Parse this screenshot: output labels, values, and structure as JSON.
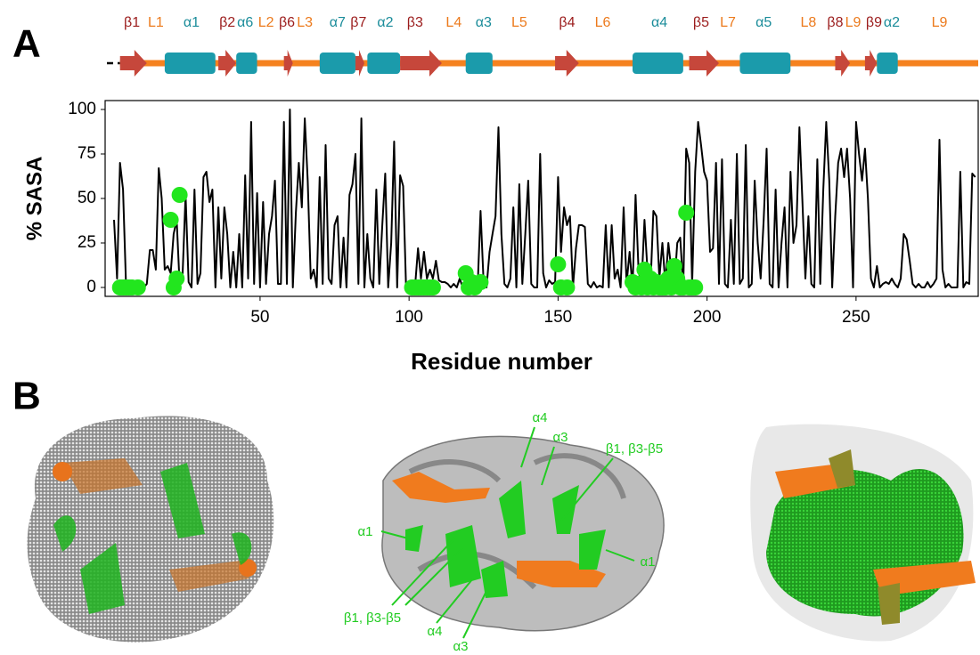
{
  "panel_labels": [
    "A",
    "B"
  ],
  "secondary_structure": {
    "labels": [
      {
        "text": "β1",
        "at": 7,
        "color": "#9b1c1c"
      },
      {
        "text": "L1",
        "at": 15,
        "color": "#ec7a1c"
      },
      {
        "text": "α1",
        "at": 27,
        "color": "#1a8c9a"
      },
      {
        "text": "β2",
        "at": 39,
        "color": "#9b1c1c"
      },
      {
        "text": "α6",
        "at": 45,
        "color": "#1a8c9a"
      },
      {
        "text": "L2",
        "at": 52,
        "color": "#ec7a1c"
      },
      {
        "text": "β6",
        "at": 59,
        "color": "#9b1c1c"
      },
      {
        "text": "L3",
        "at": 65,
        "color": "#ec7a1c"
      },
      {
        "text": "α7",
        "at": 76,
        "color": "#1a8c9a"
      },
      {
        "text": "β7",
        "at": 83,
        "color": "#9b1c1c"
      },
      {
        "text": "α2",
        "at": 92,
        "color": "#1a8c9a"
      },
      {
        "text": "β3",
        "at": 102,
        "color": "#9b1c1c"
      },
      {
        "text": "L4",
        "at": 115,
        "color": "#ec7a1c"
      },
      {
        "text": "α3",
        "at": 125,
        "color": "#1a8c9a"
      },
      {
        "text": "L5",
        "at": 137,
        "color": "#ec7a1c"
      },
      {
        "text": "β4",
        "at": 153,
        "color": "#9b1c1c"
      },
      {
        "text": "L6",
        "at": 165,
        "color": "#ec7a1c"
      },
      {
        "text": "α4",
        "at": 184,
        "color": "#1a8c9a"
      },
      {
        "text": "β5",
        "at": 198,
        "color": "#9b1c1c"
      },
      {
        "text": "L7",
        "at": 207,
        "color": "#ec7a1c"
      },
      {
        "text": "α5",
        "at": 219,
        "color": "#1a8c9a"
      },
      {
        "text": "L8",
        "at": 234,
        "color": "#ec7a1c"
      },
      {
        "text": "β8",
        "at": 243,
        "color": "#9b1c1c"
      },
      {
        "text": "L9",
        "at": 249,
        "color": "#ec7a1c"
      },
      {
        "text": "β9",
        "at": 256,
        "color": "#9b1c1c"
      },
      {
        "text": "α2",
        "at": 262,
        "color": "#1a8c9a"
      },
      {
        "text": "L9",
        "at": 278,
        "color": "#ec7a1c"
      }
    ],
    "elements": [
      {
        "shape": "arrow",
        "color": "#c6473b",
        "start": 3,
        "end": 12
      },
      {
        "shape": "rect",
        "color": "#1b9bab",
        "start": 18,
        "end": 35
      },
      {
        "shape": "arrow",
        "color": "#c6473b",
        "start": 36,
        "end": 42
      },
      {
        "shape": "rect",
        "color": "#1b9bab",
        "start": 42,
        "end": 49
      },
      {
        "shape": "arrow",
        "color": "#c6473b",
        "start": 58,
        "end": 61
      },
      {
        "shape": "rect",
        "color": "#1b9bab",
        "start": 70,
        "end": 82
      },
      {
        "shape": "arrow",
        "color": "#c6473b",
        "start": 82,
        "end": 85
      },
      {
        "shape": "rect",
        "color": "#1b9bab",
        "start": 86,
        "end": 97
      },
      {
        "shape": "arrow",
        "color": "#c6473b",
        "start": 97,
        "end": 111
      },
      {
        "shape": "rect",
        "color": "#1b9bab",
        "start": 119,
        "end": 128
      },
      {
        "shape": "arrow",
        "color": "#c6473b",
        "start": 149,
        "end": 157
      },
      {
        "shape": "rect",
        "color": "#1b9bab",
        "start": 175,
        "end": 192
      },
      {
        "shape": "arrow",
        "color": "#c6473b",
        "start": 194,
        "end": 204
      },
      {
        "shape": "rect",
        "color": "#1b9bab",
        "start": 211,
        "end": 228
      },
      {
        "shape": "arrow",
        "color": "#c6473b",
        "start": 243,
        "end": 248
      },
      {
        "shape": "arrow",
        "color": "#c6473b",
        "start": 253,
        "end": 257
      },
      {
        "shape": "rect",
        "color": "#1b9bab",
        "start": 257,
        "end": 264
      }
    ],
    "loop_color": "#f5821f"
  },
  "chart_data": {
    "type": "line",
    "ylabel": "% SASA",
    "xlabel": "Residue number",
    "xlim": [
      -2,
      291
    ],
    "ylim": [
      -5,
      105
    ],
    "xticks": [
      50,
      100,
      150,
      200,
      250
    ],
    "yticks": [
      0,
      25,
      50,
      75,
      100
    ],
    "x": [
      1,
      2,
      3,
      4,
      5,
      6,
      7,
      8,
      9,
      10,
      11,
      12,
      13,
      14,
      15,
      16,
      17,
      18,
      19,
      20,
      21,
      22,
      23,
      24,
      25,
      26,
      27,
      28,
      29,
      30,
      31,
      32,
      33,
      34,
      35,
      36,
      37,
      38,
      39,
      40,
      41,
      42,
      43,
      44,
      45,
      46,
      47,
      48,
      49,
      50,
      51,
      52,
      53,
      54,
      55,
      56,
      57,
      58,
      59,
      60,
      61,
      62,
      63,
      64,
      65,
      66,
      67,
      68,
      69,
      70,
      71,
      72,
      73,
      74,
      75,
      76,
      77,
      78,
      79,
      80,
      81,
      82,
      83,
      84,
      85,
      86,
      87,
      88,
      89,
      90,
      91,
      92,
      93,
      94,
      95,
      96,
      97,
      98,
      99,
      100,
      101,
      102,
      103,
      104,
      105,
      106,
      107,
      108,
      109,
      110,
      111,
      112,
      113,
      114,
      115,
      116,
      117,
      118,
      119,
      120,
      121,
      122,
      123,
      124,
      125,
      126,
      127,
      128,
      129,
      130,
      131,
      132,
      133,
      134,
      135,
      136,
      137,
      138,
      139,
      140,
      141,
      142,
      143,
      144,
      145,
      146,
      147,
      148,
      149,
      150,
      151,
      152,
      153,
      154,
      155,
      156,
      157,
      158,
      159,
      160,
      161,
      162,
      163,
      164,
      165,
      166,
      167,
      168,
      169,
      170,
      171,
      172,
      173,
      174,
      175,
      176,
      177,
      178,
      179,
      180,
      181,
      182,
      183,
      184,
      185,
      186,
      187,
      188,
      189,
      190,
      191,
      192,
      193,
      194,
      195,
      196,
      197,
      198,
      199,
      200,
      201,
      202,
      203,
      204,
      205,
      206,
      207,
      208,
      209,
      210,
      211,
      212,
      213,
      214,
      215,
      216,
      217,
      218,
      219,
      220,
      221,
      222,
      223,
      224,
      225,
      226,
      227,
      228,
      229,
      230,
      231,
      232,
      233,
      234,
      235,
      236,
      237,
      238,
      239,
      240,
      241,
      242,
      243,
      244,
      245,
      246,
      247,
      248,
      249,
      250,
      251,
      252,
      253,
      254,
      255,
      256,
      257,
      258,
      259,
      260,
      261,
      262,
      263,
      264,
      265,
      266,
      267,
      268,
      269,
      270,
      271,
      272,
      273,
      274,
      275,
      276,
      277,
      278,
      279,
      280,
      281,
      282,
      283,
      284,
      285,
      286,
      287,
      288,
      289,
      290
    ],
    "series": [
      {
        "color": "#000000",
        "values": [
          38,
          5,
          70,
          55,
          2,
          0,
          0,
          0,
          0,
          0,
          0,
          2,
          21,
          21,
          10,
          67,
          50,
          10,
          12,
          8,
          30,
          38,
          2,
          8,
          52,
          3,
          0,
          55,
          2,
          8,
          62,
          65,
          48,
          55,
          0,
          45,
          5,
          45,
          30,
          0,
          20,
          0,
          30,
          0,
          63,
          5,
          93,
          2,
          53,
          0,
          48,
          2,
          30,
          40,
          60,
          2,
          2,
          93,
          2,
          100,
          0,
          42,
          70,
          45,
          95,
          60,
          5,
          10,
          0,
          62,
          2,
          80,
          5,
          2,
          35,
          40,
          0,
          28,
          0,
          52,
          58,
          75,
          2,
          95,
          0,
          30,
          5,
          0,
          55,
          2,
          35,
          64,
          0,
          25,
          82,
          0,
          63,
          57,
          0,
          0,
          0,
          0,
          22,
          5,
          20,
          5,
          10,
          5,
          15,
          4,
          3,
          3,
          2,
          0,
          2,
          0,
          5,
          0,
          2,
          0,
          0,
          2,
          0,
          43,
          3,
          0,
          20,
          30,
          40,
          90,
          30,
          2,
          0,
          5,
          45,
          0,
          58,
          2,
          30,
          60,
          2,
          0,
          0,
          75,
          8,
          0,
          4,
          2,
          3,
          62,
          20,
          45,
          35,
          40,
          0,
          22,
          35,
          35,
          34,
          2,
          0,
          3,
          0,
          1,
          0,
          35,
          0,
          35,
          5,
          10,
          0,
          45,
          2,
          20,
          0,
          52,
          10,
          0,
          38,
          10,
          0,
          43,
          40,
          5,
          25,
          2,
          25,
          10,
          0,
          25,
          28,
          0,
          78,
          70,
          2,
          65,
          93,
          80,
          65,
          60,
          20,
          22,
          70,
          2,
          72,
          2,
          0,
          38,
          2,
          75,
          2,
          5,
          80,
          0,
          2,
          60,
          25,
          5,
          38,
          78,
          2,
          0,
          55,
          0,
          25,
          45,
          0,
          65,
          25,
          35,
          90,
          48,
          5,
          40,
          2,
          0,
          72,
          2,
          55,
          93,
          60,
          0,
          40,
          70,
          78,
          62,
          78,
          50,
          0,
          93,
          75,
          60,
          78,
          50,
          5,
          0,
          12,
          0,
          2,
          3,
          2,
          5,
          2,
          0,
          5,
          30,
          27,
          15,
          2,
          0,
          2,
          0,
          0,
          3,
          0,
          2,
          5,
          83,
          10,
          0,
          2,
          0,
          0,
          0,
          65,
          0,
          3,
          2,
          64,
          62
        ]
      },
      {
        "type": "scatter",
        "color": "#22e61e",
        "x": [
          3,
          4,
          5,
          6,
          7,
          9,
          20,
          21,
          22,
          23,
          101,
          102,
          103,
          104,
          105,
          106,
          107,
          108,
          119,
          120,
          121,
          122,
          124,
          150,
          151,
          153,
          175,
          176,
          177,
          178,
          179,
          180,
          181,
          182,
          183,
          184,
          185,
          186,
          187,
          188,
          189,
          190,
          191,
          192,
          193,
          194,
          195,
          196
        ],
        "values": [
          0,
          0,
          0,
          0,
          0,
          0,
          38,
          0,
          5,
          52,
          0,
          0,
          0,
          0,
          0,
          0,
          0,
          0,
          8,
          0,
          3,
          0,
          3,
          13,
          0,
          0,
          3,
          0,
          2,
          0,
          10,
          0,
          5,
          0,
          3,
          0,
          0,
          0,
          5,
          0,
          12,
          5,
          0,
          0,
          42,
          0,
          0,
          0
        ]
      }
    ]
  },
  "panel_b": {
    "annotations": [
      "α4",
      "α3",
      "β1, β3-β5",
      "α1",
      "α1",
      "β1, β3-β5",
      "α4",
      "α3"
    ]
  }
}
